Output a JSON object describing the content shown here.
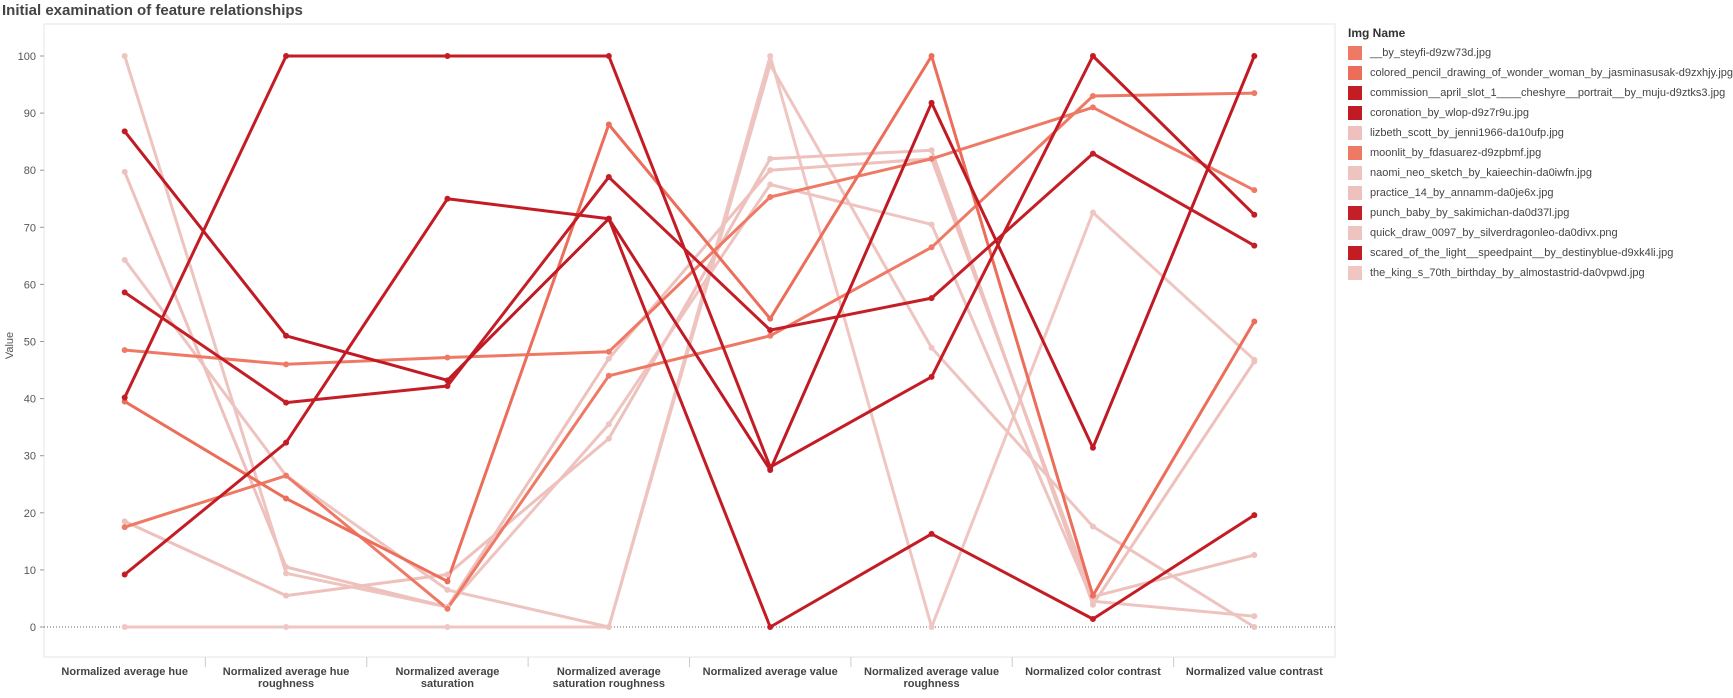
{
  "page_title": "Initial examination of feature relationships",
  "chart_data": {
    "type": "line",
    "title": "Initial examination of feature relationships",
    "xlabel": "",
    "ylabel": "Value",
    "ylim": [
      -5,
      105
    ],
    "yticks": [
      0,
      10,
      20,
      30,
      40,
      50,
      60,
      70,
      80,
      90,
      100
    ],
    "grid": false,
    "zero_line": "dotted",
    "legend_title": "Img Name",
    "legend_position": "right",
    "categories": [
      "Normalized average hue",
      "Normalized average hue roughness",
      "Normalized average saturation",
      "Normalized average saturation roughness",
      "Normalized average value",
      "Normalized average value roughness",
      "Normalized color contrast",
      "Normalized value contrast"
    ],
    "series": [
      {
        "name": "__by_steyfi-d9zw73d.jpg",
        "color": "#ee7a66",
        "values": [
          17.5,
          26.5,
          3.2,
          44,
          51,
          66.5,
          93,
          93.5
        ]
      },
      {
        "name": "colored_pencil_drawing_of_wonder_woman_by_jasminasusak-d9zxhjy.jpg",
        "color": "#ec6e5a",
        "values": [
          39.5,
          22.5,
          8,
          88,
          54,
          100,
          5.5,
          53.5
        ]
      },
      {
        "name": "commission__april_slot_1____cheshyre__portrait__by_muju-d9ztks3.jpg",
        "color": "#c41c24",
        "values": [
          9.2,
          32.3,
          75,
          71.5,
          0,
          16.3,
          1.4,
          19.6
        ]
      },
      {
        "name": "coronation_by_wlop-d9z7r9u.jpg",
        "color": "#c01a24",
        "values": [
          86.8,
          51,
          43.2,
          71.5,
          27.5,
          91.8,
          31.4,
          100
        ]
      },
      {
        "name": "lizbeth_scott_by_jenni1966-da10ufp.jpg",
        "color": "#eec1bd",
        "values": [
          79.7,
          10.5,
          3.5,
          47,
          80,
          82,
          5.3,
          12.6
        ]
      },
      {
        "name": "moonlit_by_fdasuarez-d9zpbmf.jpg",
        "color": "#ee7a66",
        "values": [
          48.5,
          46,
          47.2,
          48.2,
          75.3,
          82,
          91,
          76.5
        ]
      },
      {
        "name": "naomi_neo_sketch_by_kaieechin-da0iwfn.jpg",
        "color": "#eec4c0",
        "values": [
          64.3,
          26.5,
          6.5,
          0,
          98.5,
          48.9,
          17.6,
          0
        ]
      },
      {
        "name": "practice_14_by_annamm-da0je6x.jpg",
        "color": "#eec1bd",
        "values": [
          18.5,
          5.5,
          9.2,
          33,
          82,
          83.5,
          3.9,
          46.5
        ]
      },
      {
        "name": "punch_baby_by_sakimichan-da0d37l.jpg",
        "color": "#c41e26",
        "values": [
          58.6,
          39.3,
          42.2,
          78.8,
          52,
          57.6,
          82.9,
          66.8
        ]
      },
      {
        "name": "quick_draw_0097_by_silverdragonleo-da0divx.png",
        "color": "#eec4c0",
        "values": [
          100,
          9.4,
          3.5,
          35.5,
          77.5,
          70.5,
          4.5,
          1.9
        ]
      },
      {
        "name": "scared_of_the_light__speedpaint__by_destinyblue-d9xk4li.jpg",
        "color": "#c41c24",
        "values": [
          40.2,
          100,
          100,
          100,
          28,
          43.8,
          100,
          72.2
        ]
      },
      {
        "name": "the_king_s_70th_birthday_by_almostastrid-da0vpwd.jpg",
        "color": "#efc6c2",
        "values": [
          0,
          0,
          0,
          0,
          100,
          0,
          72.6,
          46.8
        ]
      }
    ]
  }
}
